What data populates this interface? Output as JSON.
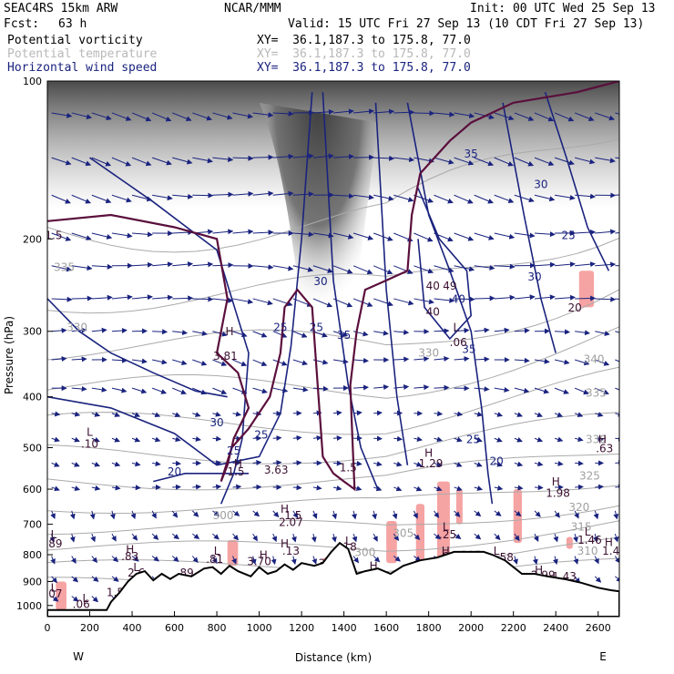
{
  "header": {
    "model": "SEAC4RS 15km ARW",
    "org": "NCAR/MMM",
    "init": "Init: 00 UTC Wed 25 Sep 13",
    "fcst_label": "Fcst:",
    "fcst_value": "63 h",
    "valid": "Valid: 15 UTC Fri 27 Sep 13 (10 CDT Fri 27 Sep 13)",
    "fields": [
      {
        "name": "Potential vorticity",
        "xy": "XY=  36.1,187.3 to 175.8, 77.0",
        "color": "#000000"
      },
      {
        "name": "Potential temperature",
        "xy": "XY=  36.1,187.3 to 175.8, 77.0",
        "color": "#b8b8b8"
      },
      {
        "name": "Horizontal wind speed",
        "xy": "XY=  36.1,187.3 to 175.8, 77.0",
        "color": "#1a237e"
      }
    ]
  },
  "chart_data": {
    "type": "cross-section",
    "xlabel": "Distance (km)",
    "ylabel": "Pressure (hPa)",
    "xlim": [
      0,
      2700
    ],
    "ylim": [
      1000,
      100
    ],
    "x_ticks": [
      "0",
      "200",
      "400",
      "600",
      "800",
      "1000",
      "1200",
      "1400",
      "1600",
      "1800",
      "2000",
      "2200",
      "2400",
      "2600"
    ],
    "y_ticks": [
      "100",
      "200",
      "300",
      "400",
      "500",
      "600",
      "700",
      "800",
      "900",
      "1000"
    ],
    "x_end_labels": {
      "left": "W",
      "right": "E"
    },
    "colors": {
      "wind": "#1a237e",
      "theta": "#aaaaaa",
      "pv_contour": "#5a0f3c",
      "pv_shade": "#555555",
      "low_pv": "#f6a3a3",
      "terrain": "#000000"
    },
    "terrain": [
      [
        0,
        1020
      ],
      [
        100,
        1020
      ],
      [
        200,
        1020
      ],
      [
        280,
        1020
      ],
      [
        300,
        985
      ],
      [
        340,
        945
      ],
      [
        380,
        900
      ],
      [
        420,
        870
      ],
      [
        460,
        860
      ],
      [
        500,
        895
      ],
      [
        540,
        870
      ],
      [
        580,
        890
      ],
      [
        620,
        870
      ],
      [
        680,
        880
      ],
      [
        740,
        850
      ],
      [
        780,
        845
      ],
      [
        820,
        870
      ],
      [
        860,
        840
      ],
      [
        900,
        860
      ],
      [
        960,
        880
      ],
      [
        1000,
        845
      ],
      [
        1040,
        870
      ],
      [
        1080,
        860
      ],
      [
        1120,
        835
      ],
      [
        1160,
        855
      ],
      [
        1200,
        830
      ],
      [
        1260,
        840
      ],
      [
        1300,
        830
      ],
      [
        1340,
        790
      ],
      [
        1380,
        760
      ],
      [
        1420,
        780
      ],
      [
        1460,
        870
      ],
      [
        1500,
        860
      ],
      [
        1560,
        850
      ],
      [
        1620,
        870
      ],
      [
        1680,
        840
      ],
      [
        1760,
        820
      ],
      [
        1840,
        810
      ],
      [
        1920,
        790
      ],
      [
        2000,
        790
      ],
      [
        2060,
        790
      ],
      [
        2100,
        800
      ],
      [
        2160,
        820
      ],
      [
        2240,
        870
      ],
      [
        2300,
        870
      ],
      [
        2360,
        880
      ],
      [
        2440,
        890
      ],
      [
        2520,
        905
      ],
      [
        2600,
        925
      ],
      [
        2660,
        935
      ],
      [
        2700,
        940
      ]
    ],
    "wind_speed_labels": [
      {
        "x": 2000,
        "p": 140,
        "v": "35"
      },
      {
        "x": 2330,
        "p": 160,
        "v": "30"
      },
      {
        "x": 2460,
        "p": 200,
        "v": "25"
      },
      {
        "x": 2300,
        "p": 240,
        "v": "30"
      },
      {
        "x": 1940,
        "p": 265,
        "v": "40"
      },
      {
        "x": 1290,
        "p": 245,
        "v": "30"
      },
      {
        "x": 1100,
        "p": 300,
        "v": "25"
      },
      {
        "x": 1270,
        "p": 300,
        "v": "25"
      },
      {
        "x": 1400,
        "p": 310,
        "v": "35"
      },
      {
        "x": 1990,
        "p": 330,
        "v": "35"
      },
      {
        "x": 800,
        "p": 455,
        "v": "30"
      },
      {
        "x": 1010,
        "p": 480,
        "v": "25"
      },
      {
        "x": 880,
        "p": 515,
        "v": "25"
      },
      {
        "x": 2010,
        "p": 490,
        "v": "25"
      },
      {
        "x": 2120,
        "p": 540,
        "v": "20"
      },
      {
        "x": 600,
        "p": 565,
        "v": "20"
      }
    ],
    "theta_labels": [
      {
        "x": 80,
        "p": 230,
        "v": "335"
      },
      {
        "x": 140,
        "p": 300,
        "v": "330"
      },
      {
        "x": 1800,
        "p": 335,
        "v": "330"
      },
      {
        "x": 2580,
        "p": 345,
        "v": "340"
      },
      {
        "x": 2590,
        "p": 400,
        "v": "335"
      },
      {
        "x": 2590,
        "p": 490,
        "v": "330"
      },
      {
        "x": 2560,
        "p": 575,
        "v": "325"
      },
      {
        "x": 2510,
        "p": 660,
        "v": "320"
      },
      {
        "x": 830,
        "p": 685,
        "v": "300"
      },
      {
        "x": 2520,
        "p": 720,
        "v": "315"
      },
      {
        "x": 1680,
        "p": 740,
        "v": "305"
      },
      {
        "x": 1500,
        "p": 805,
        "v": "300"
      },
      {
        "x": 2550,
        "p": 800,
        "v": "310"
      },
      {
        "x": 2000,
        "p": 815,
        "v": "305"
      },
      {
        "x": 1950,
        "p": 880,
        "v": "304.6"
      }
    ],
    "pv_labels": [
      {
        "x": 30,
        "p": 200,
        "v": "1.5"
      },
      {
        "x": 1820,
        "p": 250,
        "v": "40"
      },
      {
        "x": 1900,
        "p": 250,
        "v": "49"
      },
      {
        "x": 1820,
        "p": 280,
        "v": "40"
      },
      {
        "x": 1930,
        "p": 300,
        "v": "L"
      },
      {
        "x": 1940,
        "p": 320,
        "v": ".06"
      },
      {
        "x": 860,
        "p": 305,
        "v": "H"
      },
      {
        "x": 840,
        "p": 340,
        "v": "3.81"
      },
      {
        "x": 200,
        "p": 475,
        "v": "L"
      },
      {
        "x": 200,
        "p": 500,
        "v": ".10"
      },
      {
        "x": 900,
        "p": 545,
        "v": "H"
      },
      {
        "x": 890,
        "p": 565,
        "v": "1.5"
      },
      {
        "x": 1080,
        "p": 560,
        "v": "3.63"
      },
      {
        "x": 1420,
        "p": 555,
        "v": "1.5"
      },
      {
        "x": 1800,
        "p": 520,
        "v": "H"
      },
      {
        "x": 1810,
        "p": 545,
        "v": "1.29"
      },
      {
        "x": 2400,
        "p": 590,
        "v": "H"
      },
      {
        "x": 2410,
        "p": 620,
        "v": "1.98"
      },
      {
        "x": 2620,
        "p": 490,
        "v": "H"
      },
      {
        "x": 2630,
        "p": 510,
        "v": ".63"
      },
      {
        "x": 1120,
        "p": 665,
        "v": "H"
      },
      {
        "x": 1160,
        "p": 685,
        "v": "1.5"
      },
      {
        "x": 1150,
        "p": 705,
        "v": "2.07"
      },
      {
        "x": 1880,
        "p": 720,
        "v": "L"
      },
      {
        "x": 1890,
        "p": 745,
        "v": ".25"
      },
      {
        "x": 30,
        "p": 745,
        "v": "L"
      },
      {
        "x": 30,
        "p": 775,
        "v": ".89"
      },
      {
        "x": 2550,
        "p": 735,
        "v": "L"
      },
      {
        "x": 2560,
        "p": 762,
        "v": "1.46"
      },
      {
        "x": 2650,
        "p": 770,
        "v": "H"
      },
      {
        "x": 2660,
        "p": 800,
        "v": "1.4"
      },
      {
        "x": 1420,
        "p": 765,
        "v": "L"
      },
      {
        "x": 1420,
        "p": 785,
        "v": ".18"
      },
      {
        "x": 1120,
        "p": 775,
        "v": "H"
      },
      {
        "x": 1150,
        "p": 800,
        "v": ".13"
      },
      {
        "x": 390,
        "p": 795,
        "v": "H"
      },
      {
        "x": 390,
        "p": 820,
        "v": ".83"
      },
      {
        "x": 800,
        "p": 800,
        "v": "L"
      },
      {
        "x": 790,
        "p": 830,
        "v": ".81"
      },
      {
        "x": 1020,
        "p": 815,
        "v": "H"
      },
      {
        "x": 1000,
        "p": 838,
        "v": "3.70"
      },
      {
        "x": 1880,
        "p": 800,
        "v": "H"
      },
      {
        "x": 1890,
        "p": 820,
        "v": ".96"
      },
      {
        "x": 2120,
        "p": 800,
        "v": "L"
      },
      {
        "x": 2160,
        "p": 822,
        "v": ".58"
      },
      {
        "x": 1320,
        "p": 845,
        "v": "3.6"
      },
      {
        "x": 420,
        "p": 860,
        "v": "L"
      },
      {
        "x": 420,
        "p": 880,
        "v": "2.6"
      },
      {
        "x": 650,
        "p": 880,
        "v": ".89"
      },
      {
        "x": 1540,
        "p": 855,
        "v": "H"
      },
      {
        "x": 2320,
        "p": 870,
        "v": "H"
      },
      {
        "x": 2340,
        "p": 890,
        "v": "2.99"
      },
      {
        "x": 2440,
        "p": 895,
        "v": "1.43"
      },
      {
        "x": 30,
        "p": 940,
        "v": "L"
      },
      {
        "x": 30,
        "p": 965,
        "v": ".07"
      },
      {
        "x": 320,
        "p": 960,
        "v": "1.5"
      },
      {
        "x": 180,
        "p": 985,
        "v": "L"
      },
      {
        "x": 160,
        "p": 1010,
        "v": ".06"
      },
      {
        "x": 2490,
        "p": 275,
        "v": "20"
      }
    ]
  }
}
